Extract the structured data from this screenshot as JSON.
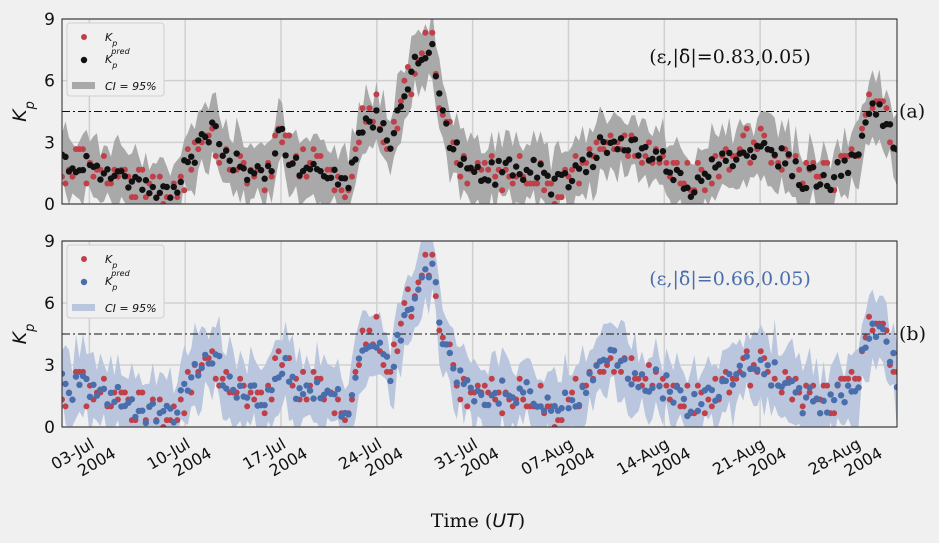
{
  "chart_data": [
    {
      "type": "scatter",
      "panel": "(a)",
      "annotation": "(ε,|δ̄|=0.83,0.05)",
      "annotation_color": "#111111",
      "ylabel": "K_p",
      "ylim": [
        0,
        9
      ],
      "yticks": [
        "0",
        "3",
        "6",
        "9"
      ],
      "threshold": 4.5,
      "legend": {
        "placement": "top-left",
        "entries": [
          "K_p",
          "K_p^pred",
          "CI = 95%"
        ]
      },
      "series": [
        {
          "name": "K_p",
          "color": "#c0404a"
        },
        {
          "name": "K_p^pred",
          "color": "#111111"
        },
        {
          "name": "CI = 95%",
          "color": "#a9a9a9"
        }
      ]
    },
    {
      "type": "scatter",
      "panel": "(b)",
      "annotation": "(ε,|δ̄|=0.66,0.05)",
      "annotation_color": "#4a6eab",
      "ylabel": "K_p",
      "ylim": [
        0,
        9
      ],
      "yticks": [
        "0",
        "3",
        "6",
        "9"
      ],
      "threshold": 4.5,
      "legend": {
        "placement": "top-left",
        "entries": [
          "K_p",
          "K_p^pred",
          "CI = 95%"
        ]
      },
      "series": [
        {
          "name": "K_p",
          "color": "#c0404a"
        },
        {
          "name": "K_p^pred",
          "color": "#4a6eab"
        },
        {
          "name": "CI = 95%",
          "color": "#b9c6dd"
        }
      ]
    }
  ],
  "x_axis": {
    "label": "Time (UT)",
    "ticks": [
      [
        "03-Jul",
        "2004"
      ],
      [
        "10-Jul",
        "2004"
      ],
      [
        "17-Jul",
        "2004"
      ],
      [
        "24-Jul",
        "2004"
      ],
      [
        "31-Jul",
        "2004"
      ],
      [
        "07-Aug",
        "2004"
      ],
      [
        "14-Aug",
        "2004"
      ],
      [
        "21-Aug",
        "2004"
      ],
      [
        "28-Aug",
        "2004"
      ]
    ],
    "range": [
      "2004-07-01",
      "2004-08-31"
    ]
  },
  "kp_trend": [
    [
      "2004-07-01",
      2.0
    ],
    [
      "2004-07-04",
      1.7
    ],
    [
      "2004-07-06",
      1.2
    ],
    [
      "2004-07-08",
      0.5
    ],
    [
      "2004-07-09",
      0.6
    ],
    [
      "2004-07-10",
      1.6
    ],
    [
      "2004-07-11",
      3.0
    ],
    [
      "2004-07-12",
      3.5
    ],
    [
      "2004-07-13",
      2.3
    ],
    [
      "2004-07-15",
      1.6
    ],
    [
      "2004-07-16",
      1.6
    ],
    [
      "2004-07-17",
      3.3
    ],
    [
      "2004-07-18",
      1.8
    ],
    [
      "2004-07-20",
      1.9
    ],
    [
      "2004-07-21",
      1.3
    ],
    [
      "2004-07-22",
      0.9
    ],
    [
      "2004-07-23",
      3.8
    ],
    [
      "2004-07-24",
      4.4
    ],
    [
      "2004-07-25",
      2.8
    ],
    [
      "2004-07-26",
      5.2
    ],
    [
      "2004-07-27",
      7.0
    ],
    [
      "2004-07-28",
      7.8
    ],
    [
      "2004-07-29",
      3.5
    ],
    [
      "2004-07-30",
      2.3
    ],
    [
      "2004-07-31",
      1.2
    ],
    [
      "2004-08-02",
      1.6
    ],
    [
      "2004-08-04",
      1.8
    ],
    [
      "2004-08-06",
      0.9
    ],
    [
      "2004-08-08",
      1.8
    ],
    [
      "2004-08-10",
      3.2
    ],
    [
      "2004-08-12",
      2.5
    ],
    [
      "2004-08-14",
      2.0
    ],
    [
      "2004-08-16",
      0.9
    ],
    [
      "2004-08-18",
      1.9
    ],
    [
      "2004-08-20",
      2.9
    ],
    [
      "2004-08-22",
      2.6
    ],
    [
      "2004-08-24",
      1.3
    ],
    [
      "2004-08-26",
      1.2
    ],
    [
      "2004-08-28",
      2.0
    ],
    [
      "2004-08-29",
      4.8
    ],
    [
      "2004-08-30",
      4.3
    ],
    [
      "2004-08-31",
      2.5
    ]
  ]
}
